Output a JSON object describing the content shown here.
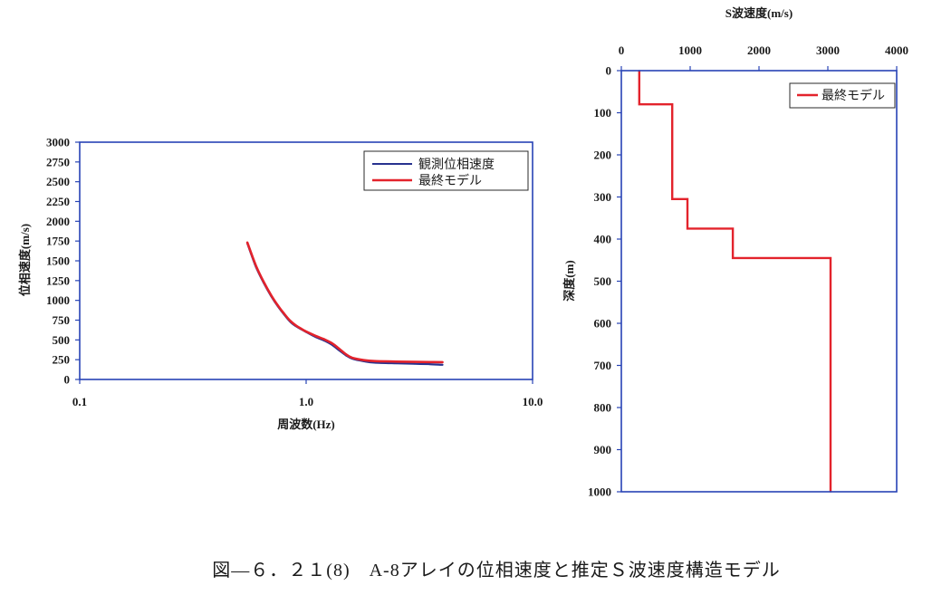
{
  "caption": "図—６．２１(8)　A-8アレイの位相速度と推定Ｓ波速度構造モデル",
  "colors": {
    "axis": "#2743b5",
    "observed": "#27328f",
    "model": "#e3232c"
  },
  "chart_data": [
    {
      "type": "line",
      "xlabel": "周波数(Hz)",
      "ylabel": "位相速度(m/s)",
      "xscale": "log",
      "xlim": [
        0.1,
        10
      ],
      "ylim": [
        0,
        3000
      ],
      "xticks": [
        0.1,
        1,
        10
      ],
      "xtick_labels": [
        "0.1",
        "1.0",
        "10.0"
      ],
      "yticks": [
        0,
        250,
        500,
        750,
        1000,
        1250,
        1500,
        1750,
        2000,
        2250,
        2500,
        2750,
        3000
      ],
      "grid": false,
      "legend": "top-right",
      "series": [
        {
          "name": "観測位相速度",
          "color": "#27328f",
          "x": [
            0.55,
            0.6,
            0.65,
            0.7,
            0.75,
            0.8,
            0.85,
            0.9,
            0.95,
            1.0,
            1.1,
            1.2,
            1.3,
            1.4,
            1.5,
            1.6,
            1.8,
            2.0,
            2.5,
            3.0,
            3.5,
            4.0
          ],
          "y": [
            1720,
            1425,
            1220,
            1055,
            925,
            820,
            730,
            675,
            635,
            600,
            538,
            492,
            438,
            368,
            305,
            262,
            230,
            213,
            204,
            198,
            193,
            186
          ]
        },
        {
          "name": "最終モデル",
          "color": "#e3232c",
          "x": [
            0.55,
            0.6,
            0.65,
            0.7,
            0.75,
            0.8,
            0.85,
            0.9,
            0.95,
            1.0,
            1.1,
            1.2,
            1.3,
            1.4,
            1.5,
            1.6,
            1.8,
            2.0,
            2.5,
            3.0,
            3.5,
            4.0
          ],
          "y": [
            1730,
            1440,
            1232,
            1066,
            935,
            830,
            742,
            684,
            642,
            606,
            552,
            508,
            458,
            388,
            318,
            274,
            244,
            232,
            226,
            222,
            220,
            219
          ]
        }
      ]
    },
    {
      "type": "line",
      "xlabel": "S波速度(m/s)",
      "ylabel": "深度(m)",
      "x_axis_position": "top",
      "y_inverted": true,
      "xlim": [
        0,
        4000
      ],
      "ylim": [
        0,
        1000
      ],
      "xticks": [
        0,
        1000,
        2000,
        3000,
        4000
      ],
      "yticks": [
        0,
        100,
        200,
        300,
        400,
        500,
        600,
        700,
        800,
        900,
        1000
      ],
      "grid": false,
      "legend": "top-right",
      "series": [
        {
          "name": "最終モデル",
          "color": "#e3232c",
          "x": [
            260,
            260,
            740,
            740,
            960,
            960,
            1620,
            1620,
            3040,
            3040
          ],
          "y": [
            0,
            80,
            80,
            305,
            305,
            375,
            375,
            445,
            445,
            1000
          ]
        }
      ]
    }
  ]
}
